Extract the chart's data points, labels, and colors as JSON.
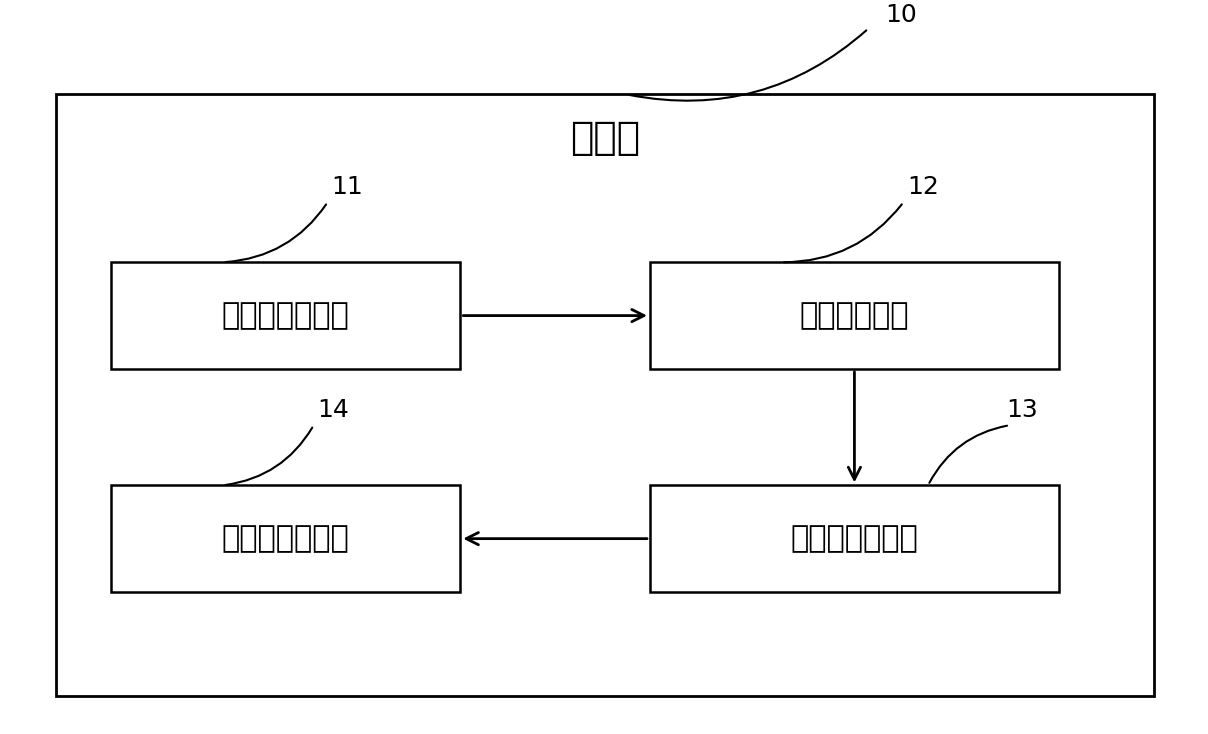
{
  "title": "客户端",
  "label_10": "10",
  "label_11": "11",
  "label_12": "12",
  "label_13": "13",
  "label_14": "14",
  "box1_label": "可视化定制模块",
  "box2_label": "数据通讯模块",
  "box3_label": "关系图生成模块",
  "box4_label": "可视化展现模块",
  "outer_box_edgecolor": "#000000",
  "outer_box_facecolor": "#ffffff",
  "inner_box_edgecolor": "#000000",
  "inner_box_facecolor": "#ffffff",
  "text_color": "#000000",
  "arrow_color": "#000000",
  "background_color": "#ffffff",
  "title_fontsize": 28,
  "label_fontsize": 22,
  "ref_fontsize": 18
}
